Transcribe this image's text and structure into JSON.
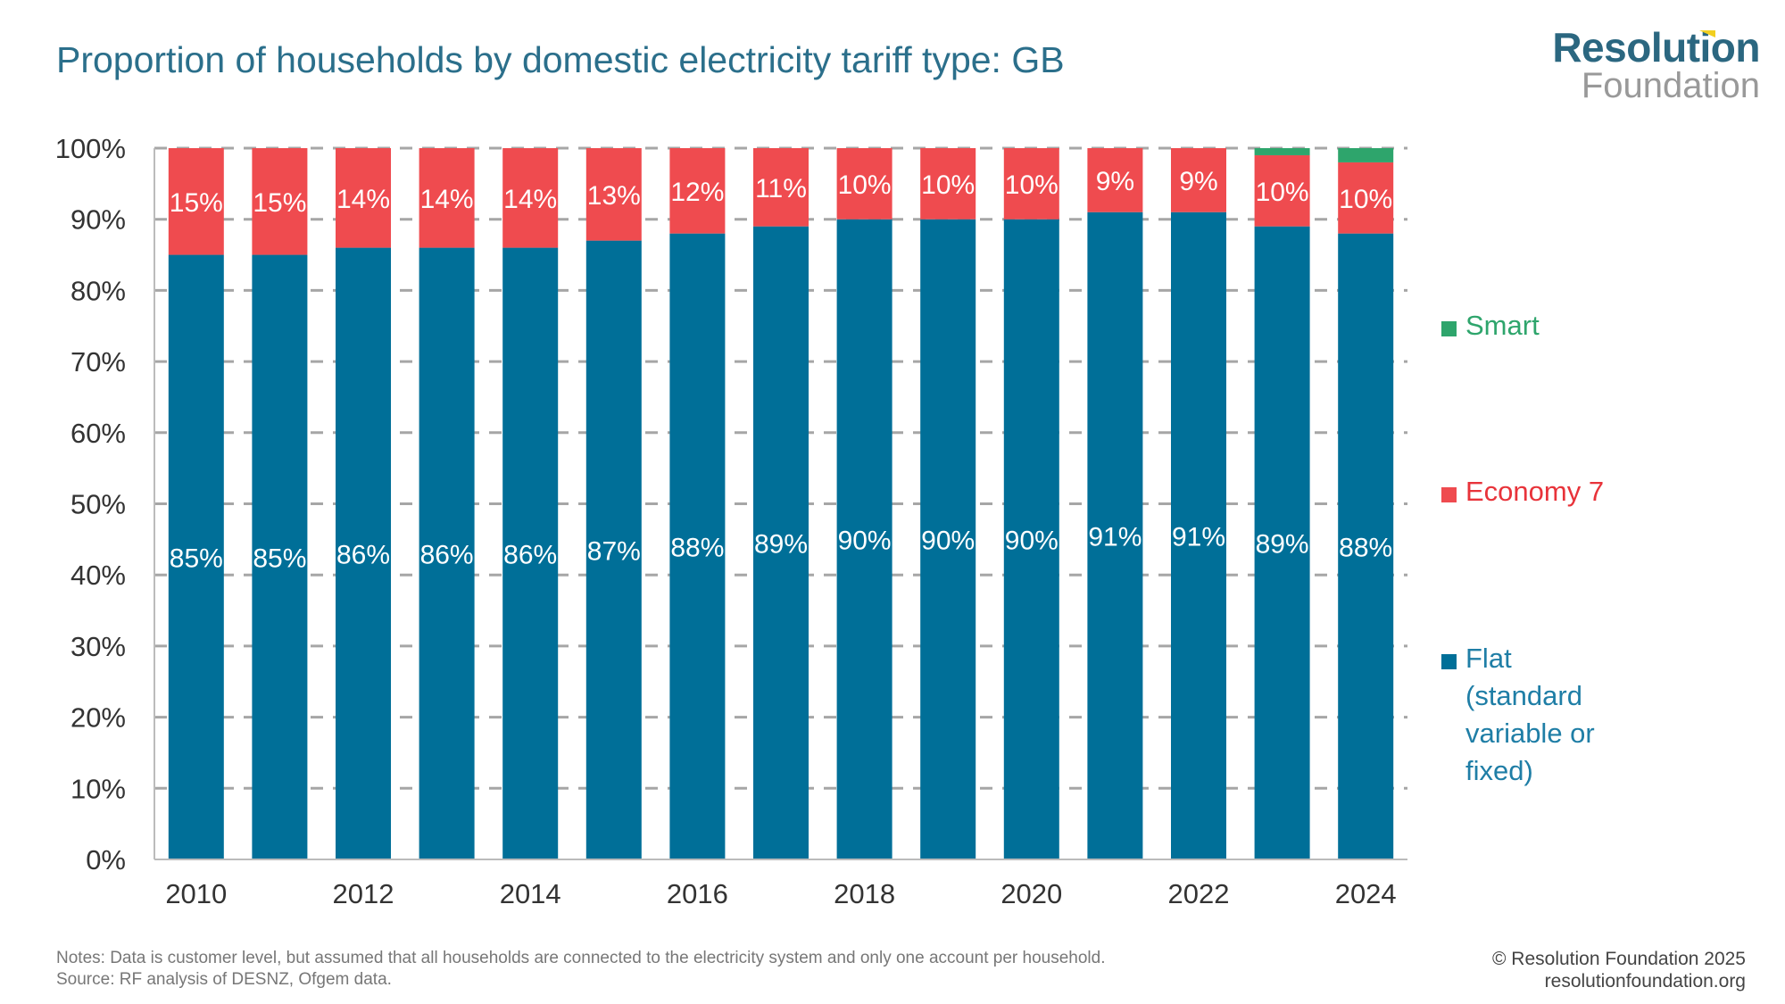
{
  "header": {
    "title": "Proportion of households by domestic electricity tariff type: GB"
  },
  "logo": {
    "line1": "Resolution",
    "line2": "Foundation"
  },
  "chart_data": {
    "type": "bar",
    "stacked": true,
    "title": "Proportion of households by domestic electricity tariff type: GB",
    "categories": [
      "2010",
      "2011",
      "2012",
      "2013",
      "2014",
      "2015",
      "2016",
      "2017",
      "2018",
      "2019",
      "2020",
      "2021",
      "2022",
      "2023",
      "2024"
    ],
    "x_tick_labels": [
      "2010",
      "2012",
      "2014",
      "2016",
      "2018",
      "2020",
      "2022",
      "2024"
    ],
    "y_tick_labels": [
      "0%",
      "10%",
      "20%",
      "30%",
      "40%",
      "50%",
      "60%",
      "70%",
      "80%",
      "90%",
      "100%"
    ],
    "ylim": [
      0,
      100
    ],
    "grid": "horizontal dashed",
    "legend_placement": "right",
    "series": [
      {
        "name": "Flat (standard variable or fixed)",
        "color": "#006f98",
        "values": [
          85,
          85,
          86,
          86,
          86,
          87,
          88,
          89,
          90,
          90,
          90,
          91,
          91,
          89,
          88
        ],
        "labels": [
          "85%",
          "85%",
          "86%",
          "86%",
          "86%",
          "87%",
          "88%",
          "89%",
          "90%",
          "90%",
          "90%",
          "91%",
          "91%",
          "89%",
          "88%"
        ]
      },
      {
        "name": "Economy 7",
        "color": "#ef4b4f",
        "values": [
          15,
          15,
          14,
          14,
          14,
          13,
          12,
          11,
          10,
          10,
          10,
          9,
          9,
          10,
          10
        ],
        "labels": [
          "15%",
          "15%",
          "14%",
          "14%",
          "14%",
          "13%",
          "12%",
          "11%",
          "10%",
          "10%",
          "10%",
          "9%",
          "9%",
          "10%",
          "10%"
        ]
      },
      {
        "name": "Smart",
        "color": "#2ea56c",
        "values": [
          0,
          0,
          0,
          0,
          0,
          0,
          0,
          0,
          0,
          0,
          0,
          0,
          0,
          1,
          2
        ]
      }
    ]
  },
  "legend": [
    {
      "label": "Smart",
      "color": "#2ea56c"
    },
    {
      "label": "Economy 7",
      "color": "#e8333a"
    },
    {
      "label": "Flat (standard variable or fixed)",
      "color": "#1f7ea6"
    }
  ],
  "footer": {
    "notes": "Notes: Data is customer level, but assumed that all households are connected to the electricity system and only one account per household.",
    "source": "Source: RF analysis of DESNZ, Ofgem data.",
    "copyright": "© Resolution Foundation 2025",
    "website": "resolutionfoundation.org"
  }
}
